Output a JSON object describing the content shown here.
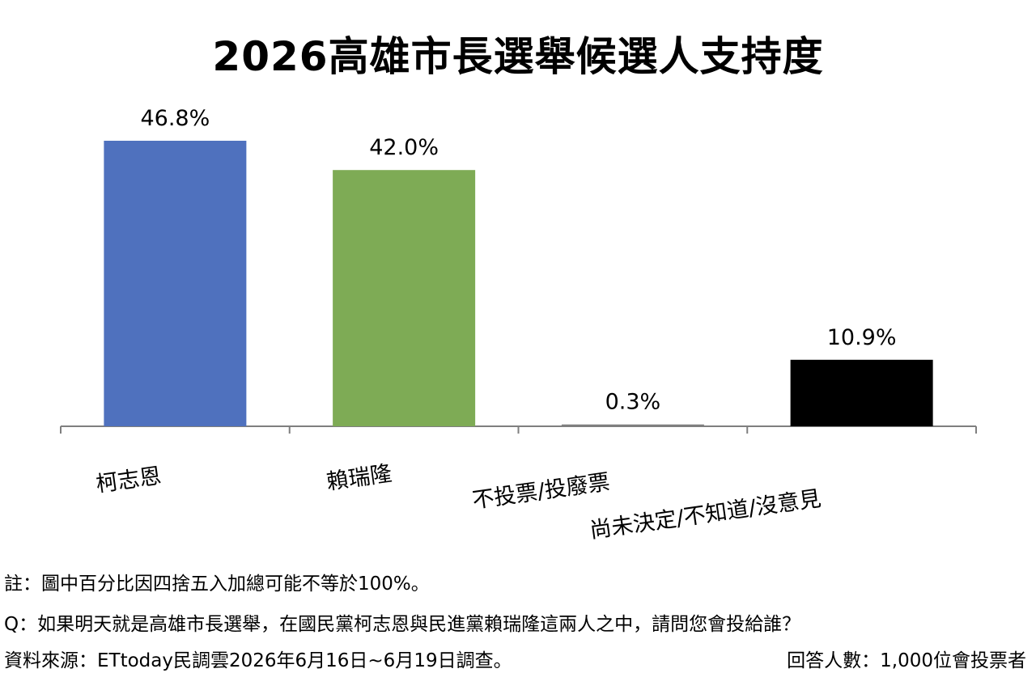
{
  "chart_data": {
    "type": "bar",
    "title": "2026高雄市長選舉候選人支持度",
    "categories": [
      "柯志恩",
      "賴瑞隆",
      "不投票/投廢票",
      "尚未決定/不知道/沒意見"
    ],
    "values": [
      46.8,
      42.0,
      0.3,
      10.9
    ],
    "value_labels": [
      "46.8%",
      "42.0%",
      "0.3%",
      "10.9%"
    ],
    "colors": [
      "#4f71be",
      "#7eab55",
      "#7f7f7f",
      "#000000"
    ],
    "ylim": [
      0,
      50
    ],
    "grid": false,
    "legend": "none"
  },
  "notes": {
    "note": "註：圖中百分比因四捨五入加總可能不等於100%。",
    "question": "Q：如果明天就是高雄市長選舉，在國民黨柯志恩與民進黨賴瑞隆這兩人之中，請問您會投給誰？",
    "source": "資料來源：ETtoday民調雲2026年6月16日~6月19日調查。",
    "sample": "回答人數：1,000位會投票者"
  }
}
